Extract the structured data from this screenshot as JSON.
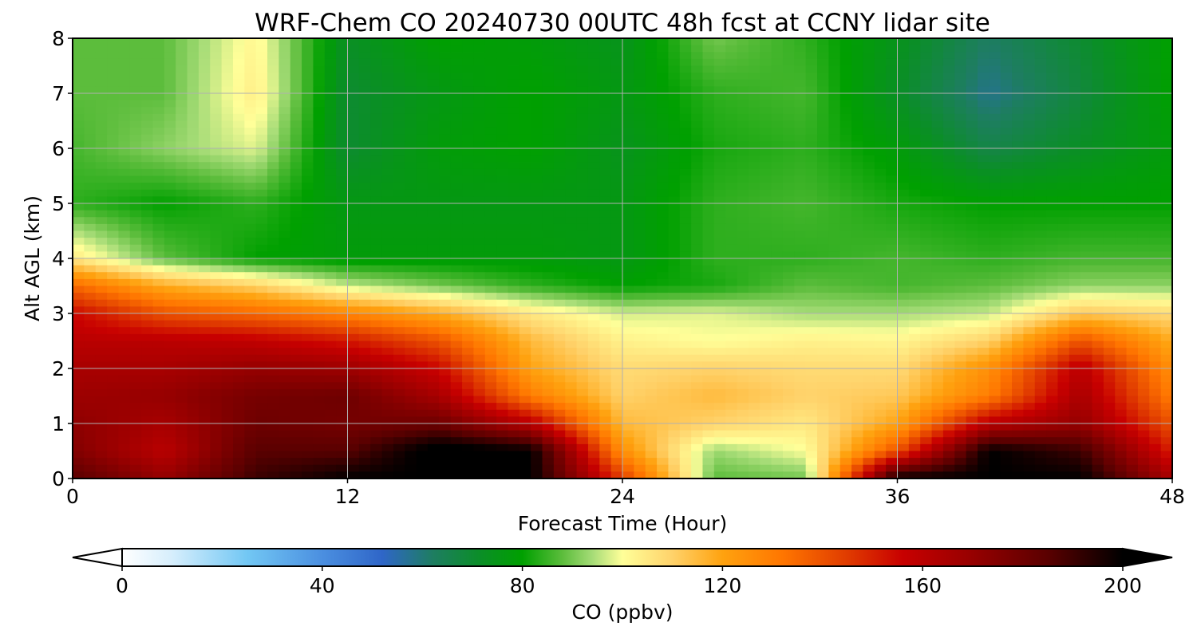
{
  "chart_data": {
    "type": "heatmap",
    "title": "WRF-Chem CO  20240730 00UTC 48h fcst at CCNY lidar site",
    "xlabel": "Forecast Time (Hour)",
    "ylabel": "Alt AGL (km)",
    "xlim": [
      0,
      48
    ],
    "ylim": [
      0,
      8
    ],
    "xticks": [
      "0",
      "12",
      "24",
      "36",
      "48"
    ],
    "yticks": [
      "0",
      "1",
      "2",
      "3",
      "4",
      "5",
      "6",
      "7",
      "8"
    ],
    "grid": true,
    "x_hours": [
      0,
      4,
      8,
      12,
      16,
      20,
      24,
      28,
      32,
      36,
      40,
      44,
      48
    ],
    "y_km": [
      0,
      0.5,
      1,
      1.5,
      2,
      2.5,
      3,
      3.5,
      4,
      5,
      6,
      7,
      8
    ],
    "z_ppbv": [
      [
        185,
        170,
        190,
        200,
        200,
        200,
        145,
        88,
        90,
        200,
        200,
        200,
        165
      ],
      [
        175,
        160,
        185,
        185,
        205,
        200,
        125,
        93,
        100,
        140,
        200,
        190,
        150
      ],
      [
        172,
        165,
        180,
        178,
        180,
        160,
        115,
        110,
        105,
        120,
        160,
        170,
        140
      ],
      [
        168,
        170,
        178,
        180,
        165,
        130,
        110,
        115,
        110,
        112,
        130,
        165,
        130
      ],
      [
        165,
        165,
        170,
        168,
        155,
        120,
        108,
        110,
        108,
        108,
        125,
        160,
        125
      ],
      [
        160,
        160,
        158,
        152,
        140,
        115,
        103,
        100,
        103,
        102,
        110,
        140,
        118
      ],
      [
        155,
        140,
        135,
        128,
        118,
        105,
        97,
        98,
        94,
        94,
        96,
        112,
        108
      ],
      [
        135,
        118,
        110,
        96,
        90,
        84,
        80,
        82,
        88,
        86,
        88,
        92,
        92
      ],
      [
        105,
        88,
        80,
        78,
        78,
        78,
        76,
        84,
        84,
        86,
        84,
        86,
        86
      ],
      [
        84,
        80,
        84,
        76,
        76,
        76,
        76,
        84,
        86,
        82,
        80,
        80,
        80
      ],
      [
        86,
        92,
        98,
        70,
        78,
        80,
        74,
        82,
        84,
        78,
        66,
        72,
        78
      ],
      [
        88,
        88,
        104,
        70,
        76,
        80,
        76,
        84,
        86,
        72,
        58,
        68,
        80
      ],
      [
        88,
        88,
        102,
        72,
        80,
        78,
        74,
        90,
        84,
        74,
        62,
        70,
        80
      ]
    ],
    "colorbar": {
      "label": "CO  (ppbv)",
      "ticks": [
        "0",
        "40",
        "80",
        "120",
        "160",
        "200"
      ],
      "range": [
        0,
        200
      ],
      "extend": "both",
      "location": "bottom",
      "colormap": [
        [
          0,
          "#ffffff"
        ],
        [
          10,
          "#d6eefc"
        ],
        [
          25,
          "#72c7f4"
        ],
        [
          40,
          "#4b8fe0"
        ],
        [
          52,
          "#2f66c8"
        ],
        [
          62,
          "#1e7d62"
        ],
        [
          72,
          "#0a8f25"
        ],
        [
          80,
          "#00a000"
        ],
        [
          88,
          "#5cbd3c"
        ],
        [
          94,
          "#a6dc77"
        ],
        [
          100,
          "#ffff99"
        ],
        [
          110,
          "#ffd26a"
        ],
        [
          120,
          "#ffa20f"
        ],
        [
          132,
          "#ff7600"
        ],
        [
          145,
          "#e03b00"
        ],
        [
          156,
          "#c80000"
        ],
        [
          170,
          "#960000"
        ],
        [
          185,
          "#5a0000"
        ],
        [
          200,
          "#000000"
        ]
      ]
    }
  }
}
